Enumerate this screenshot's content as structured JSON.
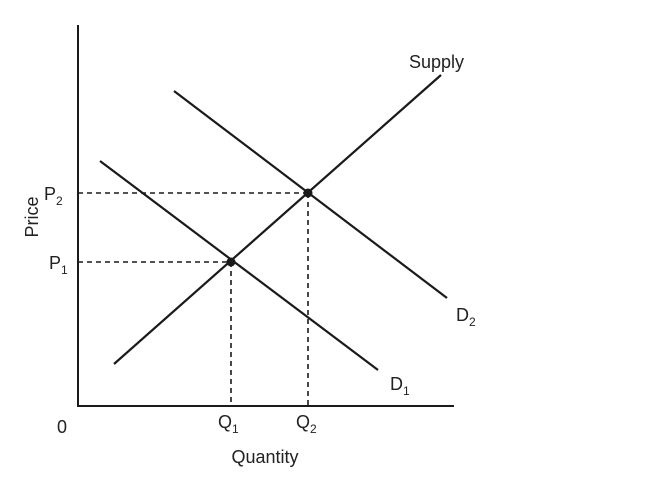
{
  "diagram": {
    "axes": {
      "x_label": "Quantity",
      "y_label": "Price",
      "origin_label": "0"
    },
    "curves": {
      "supply": {
        "label": "Supply"
      },
      "demand1": {
        "label": "D",
        "subscript": "1"
      },
      "demand2": {
        "label": "D",
        "subscript": "2"
      }
    },
    "price_levels": [
      {
        "label": "P",
        "subscript": "1"
      },
      {
        "label": "P",
        "subscript": "2"
      }
    ],
    "quantity_levels": [
      {
        "label": "Q",
        "subscript": "1"
      },
      {
        "label": "Q",
        "subscript": "2"
      }
    ],
    "colors": {
      "line": "#1a1a1a",
      "text": "#222222",
      "background": "#ffffff"
    }
  }
}
